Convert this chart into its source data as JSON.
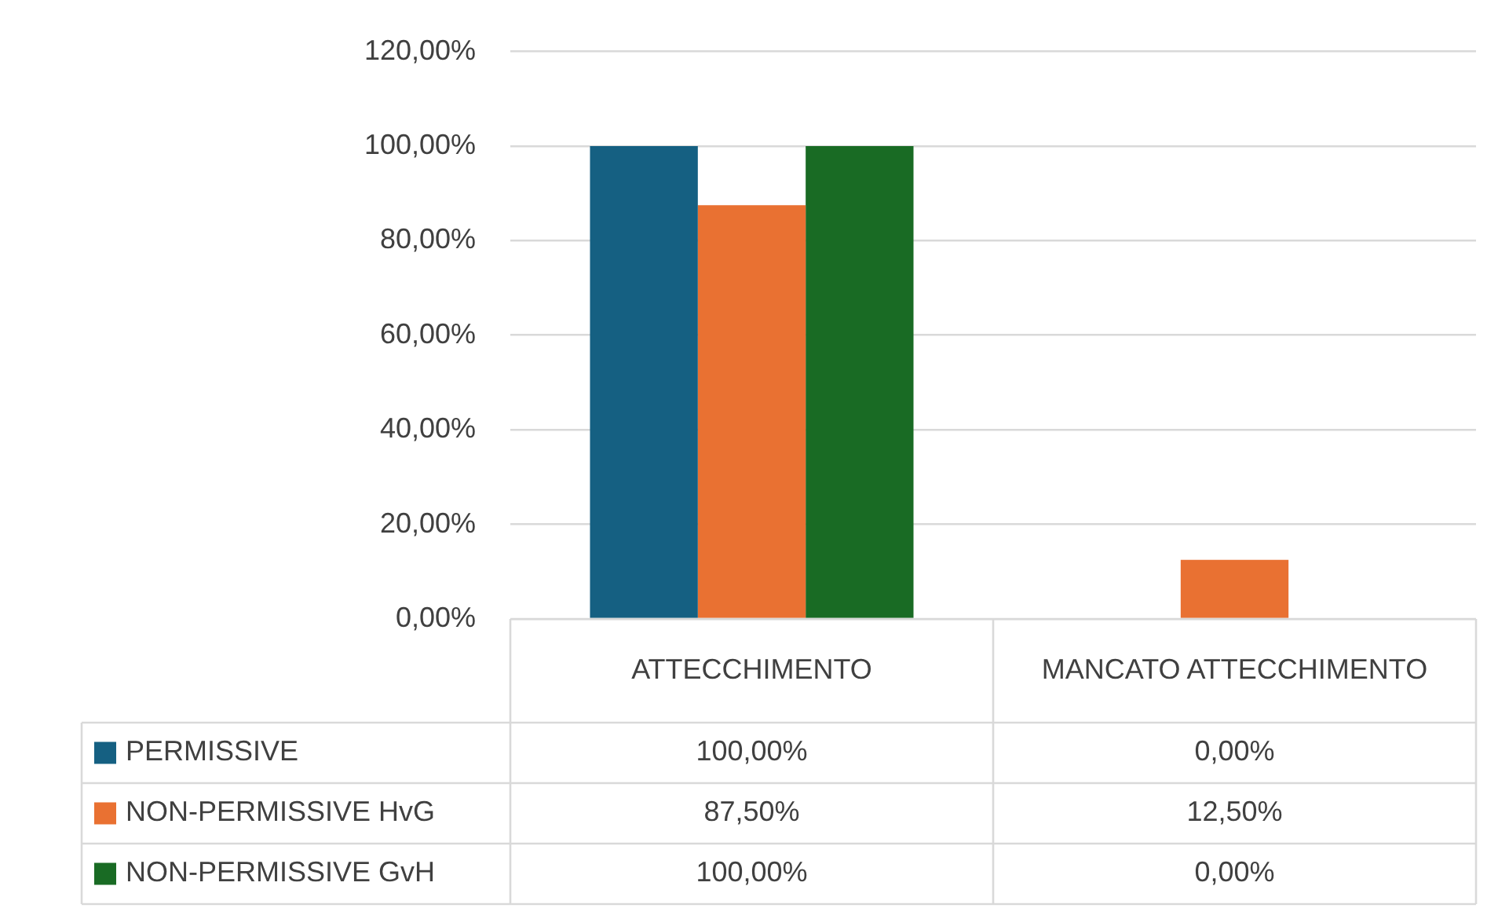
{
  "chart_data": {
    "type": "bar",
    "categories": [
      "ATTECCHIMENTO",
      "MANCATO ATTECCHIMENTO"
    ],
    "series": [
      {
        "name": "PERMISSIVE",
        "color": "#156082",
        "values": [
          100,
          0
        ],
        "value_labels": [
          "100,00%",
          "0,00%"
        ]
      },
      {
        "name": "NON-PERMISSIVE HvG",
        "color": "#e97132",
        "values": [
          87.5,
          12.5
        ],
        "value_labels": [
          "87,50%",
          "12,50%"
        ]
      },
      {
        "name": "NON-PERMISSIVE GvH",
        "color": "#196b24",
        "values": [
          100,
          0
        ],
        "value_labels": [
          "100,00%",
          "0,00%"
        ]
      }
    ],
    "ylim": [
      0,
      120
    ],
    "yticks": [
      {
        "value": 0,
        "label": "0,00%"
      },
      {
        "value": 20,
        "label": "20,00%"
      },
      {
        "value": 40,
        "label": "40,00%"
      },
      {
        "value": 60,
        "label": "60,00%"
      },
      {
        "value": 80,
        "label": "80,00%"
      },
      {
        "value": 100,
        "label": "100,00%"
      },
      {
        "value": 120,
        "label": "120,00%"
      }
    ],
    "grid": "y",
    "legend": "bottom"
  }
}
